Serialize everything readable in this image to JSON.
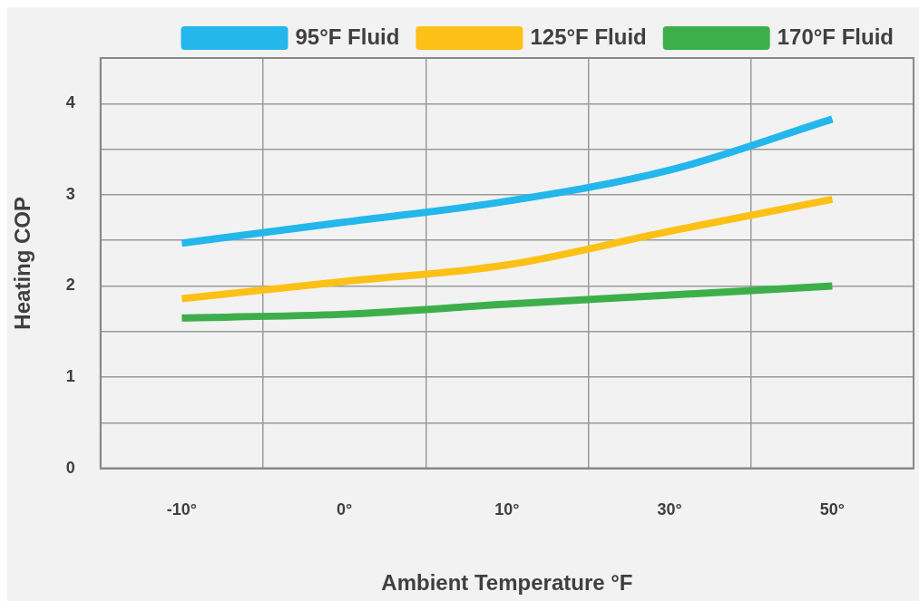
{
  "chart_data": {
    "type": "line",
    "xlabel": "Ambient Temperature °F",
    "ylabel": "Heating COP",
    "categories": [
      "-10°",
      "0°",
      "10°",
      "30°",
      "50°"
    ],
    "series": [
      {
        "name": "95°F Fluid",
        "color": "#23b7ec",
        "values": [
          2.47,
          2.7,
          2.93,
          3.27,
          3.83
        ]
      },
      {
        "name": "125°F Fluid",
        "color": "#fdc016",
        "values": [
          1.86,
          2.05,
          2.23,
          2.6,
          2.95
        ]
      },
      {
        "name": "170°F Fluid",
        "color": "#3daf4a",
        "values": [
          1.65,
          1.69,
          1.8,
          1.9,
          2.0
        ]
      }
    ],
    "ylim": [
      0,
      4.5
    ],
    "yticks": [
      0,
      {
        "value": 0.5,
        "label": null
      },
      1,
      {
        "value": 1.5,
        "label": null
      },
      2,
      {
        "value": 2.5,
        "label": null
      },
      3,
      {
        "value": 3.5,
        "label": null
      },
      4,
      {
        "value": 4.5,
        "label": null
      }
    ],
    "grid": true,
    "legend": "top right",
    "marker": "none",
    "line_style": "solid"
  }
}
